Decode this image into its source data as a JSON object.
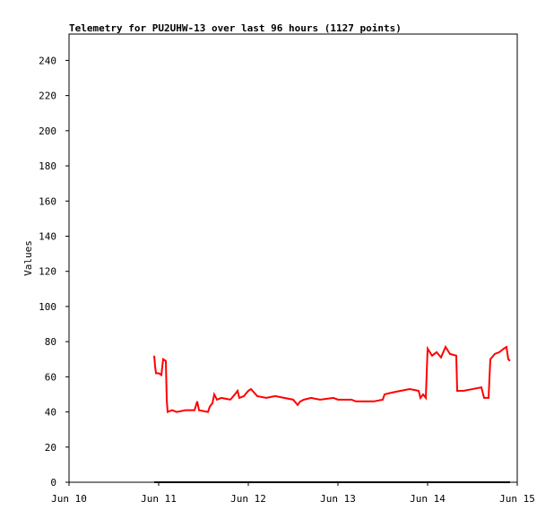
{
  "chart_data": {
    "type": "line",
    "title": "Telemetry for PU2UHW-13 over last 96 hours (1127 points)",
    "y_label": "Values",
    "xlim": [
      10,
      15
    ],
    "xticks": [
      {
        "value": 10,
        "label": "Jun 10"
      },
      {
        "value": 11,
        "label": "Jun 11"
      },
      {
        "value": 12,
        "label": "Jun 12"
      },
      {
        "value": 13,
        "label": "Jun 13"
      },
      {
        "value": 14,
        "label": "Jun 14"
      },
      {
        "value": 15,
        "label": "Jun 15"
      }
    ],
    "ylim": [
      0,
      255
    ],
    "yticks": [
      0,
      20,
      40,
      60,
      80,
      100,
      120,
      140,
      160,
      180,
      200,
      220,
      240
    ],
    "grid": false,
    "series": [
      {
        "color": "#ff0000",
        "x": [
          10.95,
          10.96,
          10.97,
          11.0,
          11.03,
          11.05,
          11.08,
          11.09,
          11.1,
          11.15,
          11.2,
          11.3,
          11.4,
          11.43,
          11.45,
          11.55,
          11.57,
          11.6,
          11.62,
          11.65,
          11.7,
          11.8,
          11.85,
          11.88,
          11.9,
          11.95,
          12.0,
          12.03,
          12.1,
          12.2,
          12.3,
          12.4,
          12.5,
          12.55,
          12.58,
          12.62,
          12.7,
          12.8,
          12.95,
          13.0,
          13.15,
          13.2,
          13.4,
          13.5,
          13.52,
          13.6,
          13.7,
          13.8,
          13.9,
          13.92,
          13.95,
          13.98,
          14.0,
          14.05,
          14.1,
          14.15,
          14.2,
          14.25,
          14.32,
          14.33,
          14.4,
          14.5,
          14.6,
          14.63,
          14.68,
          14.7,
          14.75,
          14.8,
          14.85,
          14.88,
          14.9,
          14.92
        ],
        "values": [
          72,
          66,
          62,
          62,
          61,
          70,
          69,
          47,
          40,
          41,
          40,
          41,
          41,
          46,
          41,
          40,
          43,
          45,
          50,
          47,
          48,
          47,
          50,
          52,
          48,
          49,
          52,
          53,
          49,
          48,
          49,
          48,
          47,
          44,
          46,
          47,
          48,
          47,
          48,
          47,
          47,
          46,
          46,
          47,
          50,
          51,
          52,
          53,
          52,
          48,
          50,
          48,
          76,
          72,
          74,
          71,
          77,
          73,
          72,
          52,
          52,
          53,
          54,
          48,
          48,
          70,
          73,
          74,
          76,
          77,
          70,
          69
        ]
      },
      {
        "color": "#000000",
        "x": [
          10.95,
          14.92
        ],
        "values": [
          0,
          0
        ]
      }
    ]
  }
}
